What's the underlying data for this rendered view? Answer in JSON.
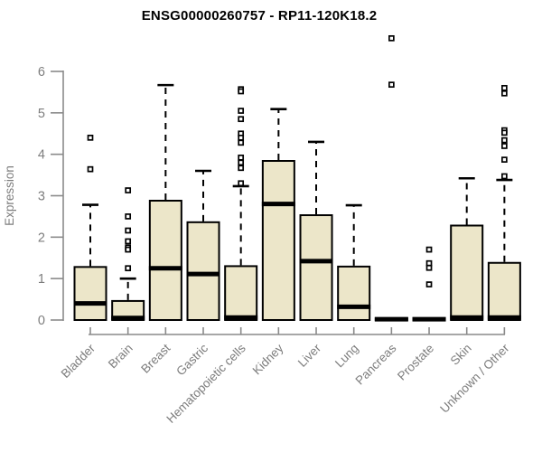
{
  "chart_data": {
    "type": "boxplot",
    "title": "ENSG00000260757 - RP11-120K18.2",
    "ylabel": "Expression",
    "xlabel": "",
    "ylim": [
      0,
      6
    ],
    "yticks": [
      0,
      1,
      2,
      3,
      4,
      5,
      6
    ],
    "grid": false,
    "legend": false,
    "categories": [
      "Bladder",
      "Brain",
      "Breast",
      "Gastric",
      "Hematopoietic cells",
      "Kidney",
      "Liver",
      "Lung",
      "Pancreas",
      "Prostate",
      "Skin",
      "Unknown / Other"
    ],
    "series": [
      {
        "name": "Bladder",
        "q1": 0,
        "median": 0.4,
        "q3": 1.28,
        "whisker_low": 0,
        "whisker_high": 2.78,
        "outliers": [
          4.4,
          3.64
        ]
      },
      {
        "name": "Brain",
        "q1": 0,
        "median": 0.05,
        "q3": 0.46,
        "whisker_low": 0,
        "whisker_high": 1.0,
        "outliers": [
          3.13,
          2.5,
          2.16,
          1.9,
          1.75,
          1.7,
          1.25
        ]
      },
      {
        "name": "Breast",
        "q1": 0,
        "median": 1.25,
        "q3": 2.88,
        "whisker_low": 0,
        "whisker_high": 5.67,
        "outliers": []
      },
      {
        "name": "Gastric",
        "q1": 0,
        "median": 1.11,
        "q3": 2.36,
        "whisker_low": 0,
        "whisker_high": 3.6,
        "outliers": []
      },
      {
        "name": "Hematopoietic cells",
        "q1": 0,
        "median": 0.06,
        "q3": 1.3,
        "whisker_low": 0,
        "whisker_high": 3.23,
        "outliers": [
          5.57,
          5.52,
          5.05,
          4.85,
          4.5,
          4.4,
          4.28,
          3.92,
          3.8,
          3.67,
          3.3
        ]
      },
      {
        "name": "Kidney",
        "q1": 0,
        "median": 2.8,
        "q3": 3.84,
        "whisker_low": 0,
        "whisker_high": 5.09,
        "outliers": []
      },
      {
        "name": "Liver",
        "q1": 0,
        "median": 1.42,
        "q3": 2.53,
        "whisker_low": 0,
        "whisker_high": 4.3,
        "outliers": []
      },
      {
        "name": "Lung",
        "q1": 0,
        "median": 0.32,
        "q3": 1.29,
        "whisker_low": 0,
        "whisker_high": 2.77,
        "outliers": []
      },
      {
        "name": "Pancreas",
        "q1": 0,
        "median": 0.02,
        "q3": 0.04,
        "whisker_low": 0,
        "whisker_high": 0.04,
        "outliers": [
          6.8,
          5.68
        ]
      },
      {
        "name": "Prostate",
        "q1": 0,
        "median": 0.02,
        "q3": 0.04,
        "whisker_low": 0,
        "whisker_high": 0.04,
        "outliers": [
          1.7,
          1.37,
          1.26,
          0.86
        ]
      },
      {
        "name": "Skin",
        "q1": 0,
        "median": 0.06,
        "q3": 2.28,
        "whisker_low": 0,
        "whisker_high": 3.42,
        "outliers": []
      },
      {
        "name": "Unknown / Other",
        "q1": 0,
        "median": 0.06,
        "q3": 1.38,
        "whisker_low": 0,
        "whisker_high": 3.38,
        "outliers": [
          5.6,
          5.47,
          4.58,
          4.52,
          4.34,
          4.2,
          3.87,
          3.47
        ]
      }
    ],
    "colors": {
      "box_fill": "#ece6c9",
      "box_border": "#000000",
      "median": "#000000",
      "whisker": "#000000",
      "outlier_stroke": "#000000",
      "outlier_fill": "#ffffff",
      "axis": "#8a8a8a",
      "tick_label": "#7d7d7d",
      "title": "#000000"
    }
  }
}
